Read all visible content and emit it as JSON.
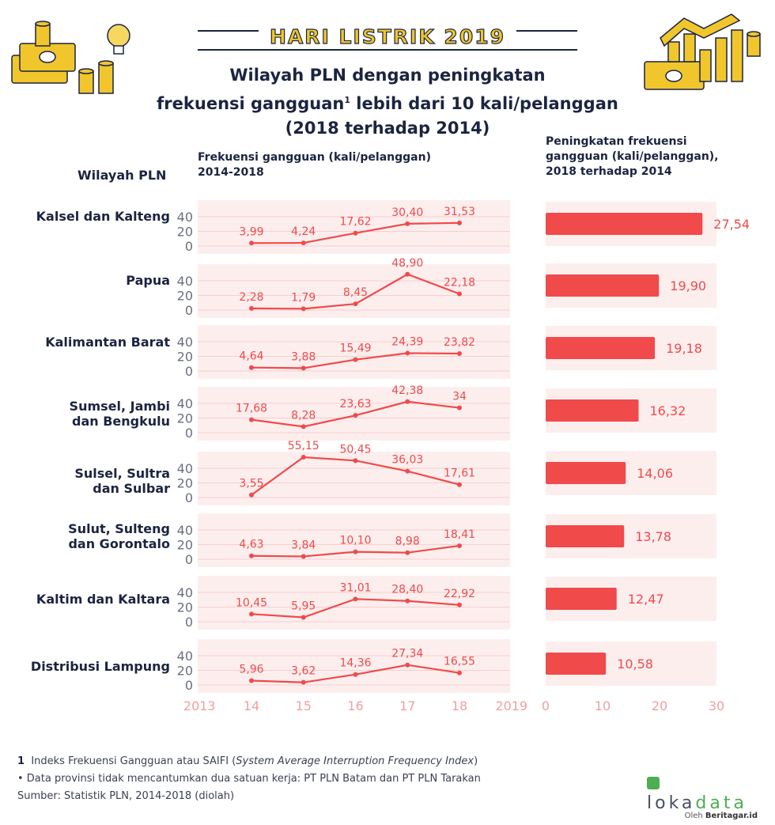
{
  "banner": "HARI LISTRIK 2019",
  "title": {
    "line1": "Wilayah PLN dengan peningkatan",
    "line2a": "frekuensi gangguan",
    "line2sup": "1",
    "line2b": " lebih dari 10 kali/pelanggan",
    "line3": "(2018 terhadap 2014)"
  },
  "headers": {
    "region": "Wilayah PLN",
    "line_l1": "Frekuensi gangguan (kali/pelanggan)",
    "line_l2": "2014-2018",
    "bar_l1": "Peningkatan frekuensi",
    "bar_l2": "gangguan (kali/pelanggan),",
    "bar_l3": "2018 terhadap 2014"
  },
  "regions": [
    {
      "l1": "Kalsel dan Kalteng",
      "l2": ""
    },
    {
      "l1": "Papua",
      "l2": ""
    },
    {
      "l1": "Kalimantan Barat",
      "l2": ""
    },
    {
      "l1": "Sumsel, Jambi",
      "l2": "dan Bengkulu"
    },
    {
      "l1": "Sulsel, Sultra",
      "l2": "dan Sulbar"
    },
    {
      "l1": "Sulut, Sulteng",
      "l2": "dan Gorontalo"
    },
    {
      "l1": "Kaltim dan Kaltara",
      "l2": ""
    },
    {
      "l1": "Distribusi Lampung",
      "l2": ""
    }
  ],
  "chart_data": [
    {
      "type": "line",
      "x": [
        14,
        15,
        16,
        17,
        18
      ],
      "x_ticks": [
        "2013",
        "14",
        "15",
        "16",
        "17",
        "18",
        "2019"
      ],
      "y_ticks": [
        "0",
        "20",
        "40"
      ],
      "ylim": [
        0,
        60
      ],
      "series": [
        {
          "region": "Kalsel dan Kalteng",
          "values": [
            3.99,
            4.24,
            17.62,
            30.4,
            31.53
          ],
          "labels": [
            "3,99",
            "4,24",
            "17,62",
            "30,40",
            "31,53"
          ]
        },
        {
          "region": "Papua",
          "values": [
            2.28,
            1.79,
            8.45,
            48.9,
            22.18
          ],
          "labels": [
            "2,28",
            "1,79",
            "8,45",
            "48,90",
            "22,18"
          ]
        },
        {
          "region": "Kalimantan Barat",
          "values": [
            4.64,
            3.88,
            15.49,
            24.39,
            23.82
          ],
          "labels": [
            "4,64",
            "3,88",
            "15,49",
            "24,39",
            "23,82"
          ]
        },
        {
          "region": "Sumsel, Jambi dan Bengkulu",
          "values": [
            17.68,
            8.28,
            23.63,
            42.38,
            34
          ],
          "labels": [
            "17,68",
            "8,28",
            "23,63",
            "42,38",
            "34"
          ]
        },
        {
          "region": "Sulsel, Sultra dan Sulbar",
          "values": [
            3.55,
            55.15,
            50.45,
            36.03,
            17.61
          ],
          "labels": [
            "3,55",
            "55,15",
            "50,45",
            "36,03",
            "17,61"
          ]
        },
        {
          "region": "Sulut, Sulteng dan Gorontalo",
          "values": [
            4.63,
            3.84,
            10.1,
            8.98,
            18.41
          ],
          "labels": [
            "4,63",
            "3,84",
            "10,10",
            "8,98",
            "18,41"
          ]
        },
        {
          "region": "Kaltim dan Kaltara",
          "values": [
            10.45,
            5.95,
            31.01,
            28.4,
            22.92
          ],
          "labels": [
            "10,45",
            "5,95",
            "31,01",
            "28,40",
            "22,92"
          ]
        },
        {
          "region": "Distribusi Lampung",
          "values": [
            5.96,
            3.62,
            14.36,
            27.34,
            16.55
          ],
          "labels": [
            "5,96",
            "3,62",
            "14,36",
            "27,34",
            "16,55"
          ]
        }
      ]
    },
    {
      "type": "bar",
      "orientation": "horizontal",
      "categories": [
        "Kalsel dan Kalteng",
        "Papua",
        "Kalimantan Barat",
        "Sumsel, Jambi dan Bengkulu",
        "Sulsel, Sultra dan Sulbar",
        "Sulut, Sulteng dan Gorontalo",
        "Kaltim dan Kaltara",
        "Distribusi Lampung"
      ],
      "values": [
        27.54,
        19.9,
        19.18,
        16.32,
        14.06,
        13.78,
        12.47,
        10.58
      ],
      "labels": [
        "27,54",
        "19,90",
        "19,18",
        "16,32",
        "14,06",
        "13,78",
        "12,47",
        "10,58"
      ],
      "x_ticks": [
        "0",
        "10",
        "20",
        "30"
      ],
      "xlim": [
        0,
        30
      ]
    }
  ],
  "colors": {
    "accent": "#f04a4a",
    "navy": "#1b2440",
    "band": "#fdeeee",
    "grid": "#f6cfcf",
    "tick": "#f0a0a0",
    "banner": "#f1c62c"
  },
  "footnotes": {
    "n1_num": "1",
    "n1_text": "Indeks Frekuensi Gangguan atau SAIFI (",
    "n1_italic": "System Average Interruption Frequency Index",
    "n1_end": ")",
    "n2": "• Data provinsi tidak mencantumkan dua satuan kerja: PT PLN Batam dan PT PLN Tarakan",
    "n3": "Sumber: Statistik PLN, 2014-2018 (diolah)"
  },
  "logo": {
    "word_a": "loka",
    "word_b": "data",
    "by_prefix": "Oleh ",
    "by_brand": "Beritagar.id"
  }
}
